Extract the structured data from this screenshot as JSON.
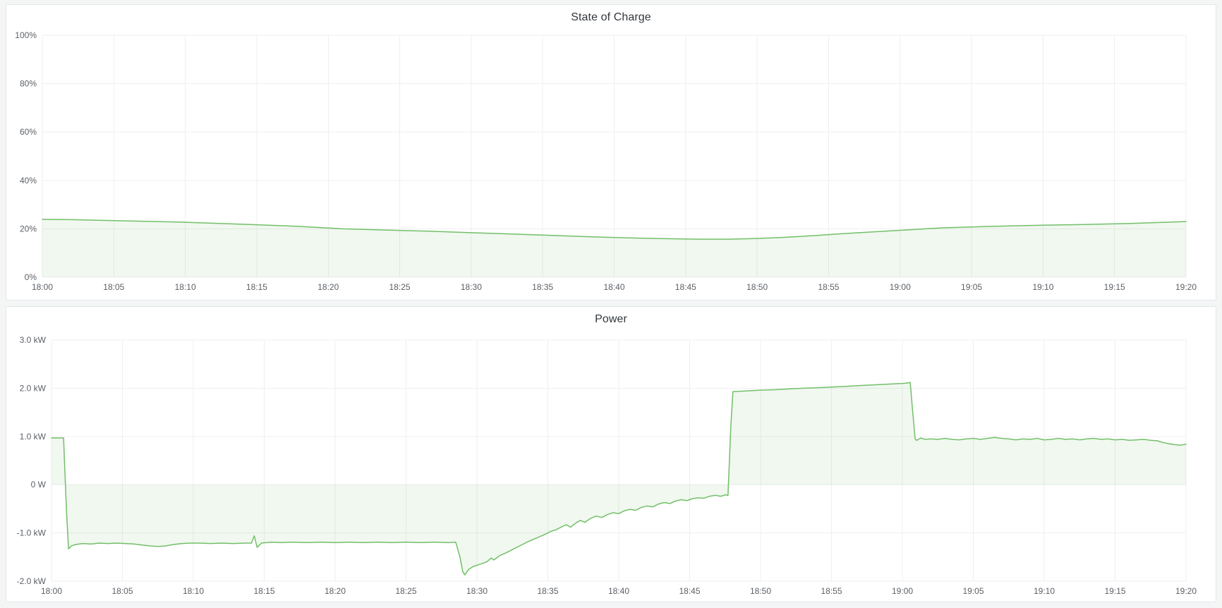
{
  "page": {
    "background": "#f4f5f5",
    "panel_background": "#ffffff",
    "panel_border_color": "#e2e7ee",
    "grid_color": "#efeff1",
    "tick_label_color": "#5c6066",
    "accent_green": "#73bf69"
  },
  "chart_data": [
    {
      "id": "soc",
      "type": "area",
      "title": "State of Charge",
      "xlabel": "",
      "ylabel": "",
      "x_unit": "time",
      "xlim_minutes": [
        0,
        80
      ],
      "ylim": [
        0,
        100
      ],
      "grid": true,
      "legend": "none",
      "x_ticks": [
        {
          "v": 0,
          "label": "18:00"
        },
        {
          "v": 5,
          "label": "18:05"
        },
        {
          "v": 10,
          "label": "18:10"
        },
        {
          "v": 15,
          "label": "18:15"
        },
        {
          "v": 20,
          "label": "18:20"
        },
        {
          "v": 25,
          "label": "18:25"
        },
        {
          "v": 30,
          "label": "18:30"
        },
        {
          "v": 35,
          "label": "18:35"
        },
        {
          "v": 40,
          "label": "18:40"
        },
        {
          "v": 45,
          "label": "18:45"
        },
        {
          "v": 50,
          "label": "18:50"
        },
        {
          "v": 55,
          "label": "18:55"
        },
        {
          "v": 60,
          "label": "19:00"
        },
        {
          "v": 65,
          "label": "19:05"
        },
        {
          "v": 70,
          "label": "19:10"
        },
        {
          "v": 75,
          "label": "19:15"
        },
        {
          "v": 80,
          "label": "19:20"
        }
      ],
      "y_ticks": [
        {
          "v": 100,
          "label": "100%"
        },
        {
          "v": 80,
          "label": "80%"
        },
        {
          "v": 60,
          "label": "60%"
        },
        {
          "v": 40,
          "label": "40%"
        },
        {
          "v": 20,
          "label": "20%"
        },
        {
          "v": 0,
          "label": "0%"
        }
      ],
      "series": [
        {
          "name": "State of Charge",
          "color": "#73bf69",
          "fill": "rgba(115,191,105,0.11)",
          "fill_baseline": 0,
          "points": [
            [
              0,
              23.9
            ],
            [
              2,
              23.8
            ],
            [
              5,
              23.4
            ],
            [
              8,
              23.0
            ],
            [
              10,
              22.7
            ],
            [
              12,
              22.3
            ],
            [
              15,
              21.7
            ],
            [
              18,
              21.0
            ],
            [
              21,
              20.0
            ],
            [
              24,
              19.5
            ],
            [
              27,
              19.0
            ],
            [
              30,
              18.4
            ],
            [
              33,
              17.8
            ],
            [
              36,
              17.2
            ],
            [
              39,
              16.6
            ],
            [
              42,
              16.1
            ],
            [
              44,
              15.9
            ],
            [
              46,
              15.7
            ],
            [
              48,
              15.7
            ],
            [
              50,
              16.0
            ],
            [
              52,
              16.5
            ],
            [
              54,
              17.2
            ],
            [
              56,
              18.0
            ],
            [
              58,
              18.7
            ],
            [
              60,
              19.4
            ],
            [
              62,
              20.1
            ],
            [
              63,
              20.4
            ],
            [
              65,
              20.8
            ],
            [
              67,
              21.1
            ],
            [
              70,
              21.5
            ],
            [
              73,
              21.8
            ],
            [
              76,
              22.2
            ],
            [
              78,
              22.6
            ],
            [
              80,
              23.0
            ]
          ]
        }
      ]
    },
    {
      "id": "power",
      "type": "area",
      "title": "Power",
      "xlabel": "",
      "ylabel": "",
      "x_unit": "time",
      "xlim_minutes": [
        0,
        80
      ],
      "ylim": [
        -2,
        3
      ],
      "grid": true,
      "legend": "none",
      "x_ticks": [
        {
          "v": 0,
          "label": "18:00"
        },
        {
          "v": 5,
          "label": "18:05"
        },
        {
          "v": 10,
          "label": "18:10"
        },
        {
          "v": 15,
          "label": "18:15"
        },
        {
          "v": 20,
          "label": "18:20"
        },
        {
          "v": 25,
          "label": "18:25"
        },
        {
          "v": 30,
          "label": "18:30"
        },
        {
          "v": 35,
          "label": "18:35"
        },
        {
          "v": 40,
          "label": "18:40"
        },
        {
          "v": 45,
          "label": "18:45"
        },
        {
          "v": 50,
          "label": "18:50"
        },
        {
          "v": 55,
          "label": "18:55"
        },
        {
          "v": 60,
          "label": "19:00"
        },
        {
          "v": 65,
          "label": "19:05"
        },
        {
          "v": 70,
          "label": "19:10"
        },
        {
          "v": 75,
          "label": "19:15"
        },
        {
          "v": 80,
          "label": "19:20"
        }
      ],
      "y_ticks": [
        {
          "v": 3,
          "label": "3.0 kW"
        },
        {
          "v": 2,
          "label": "2.0 kW"
        },
        {
          "v": 1,
          "label": "1.0 kW"
        },
        {
          "v": 0,
          "label": "0 W"
        },
        {
          "v": -1,
          "label": "-1.0 kW"
        },
        {
          "v": -2,
          "label": "-2.0 kW"
        }
      ],
      "series": [
        {
          "name": "Power",
          "color": "#73bf69",
          "fill": "rgba(115,191,105,0.11)",
          "fill_baseline": 0,
          "points": [
            [
              0,
              0.97
            ],
            [
              0.85,
              0.97
            ],
            [
              1.05,
              -0.5
            ],
            [
              1.2,
              -1.33
            ],
            [
              1.4,
              -1.27
            ],
            [
              1.7,
              -1.24
            ],
            [
              2.2,
              -1.22
            ],
            [
              2.8,
              -1.23
            ],
            [
              3.4,
              -1.21
            ],
            [
              4,
              -1.22
            ],
            [
              4.6,
              -1.21
            ],
            [
              5.2,
              -1.22
            ],
            [
              5.8,
              -1.23
            ],
            [
              6.4,
              -1.25
            ],
            [
              7,
              -1.27
            ],
            [
              7.5,
              -1.28
            ],
            [
              8,
              -1.27
            ],
            [
              8.6,
              -1.24
            ],
            [
              9.2,
              -1.22
            ],
            [
              9.8,
              -1.21
            ],
            [
              10.5,
              -1.21
            ],
            [
              11.2,
              -1.22
            ],
            [
              12,
              -1.21
            ],
            [
              12.8,
              -1.22
            ],
            [
              13.6,
              -1.21
            ],
            [
              14.1,
              -1.21
            ],
            [
              14.3,
              -1.06
            ],
            [
              14.5,
              -1.3
            ],
            [
              14.8,
              -1.21
            ],
            [
              15.5,
              -1.19
            ],
            [
              16.2,
              -1.2
            ],
            [
              17,
              -1.19
            ],
            [
              18,
              -1.2
            ],
            [
              19,
              -1.19
            ],
            [
              20,
              -1.2
            ],
            [
              21,
              -1.19
            ],
            [
              22,
              -1.2
            ],
            [
              23,
              -1.19
            ],
            [
              24,
              -1.2
            ],
            [
              25,
              -1.19
            ],
            [
              26,
              -1.2
            ],
            [
              27,
              -1.19
            ],
            [
              28,
              -1.2
            ],
            [
              28.5,
              -1.19
            ],
            [
              28.8,
              -1.5
            ],
            [
              29.0,
              -1.8
            ],
            [
              29.15,
              -1.87
            ],
            [
              29.4,
              -1.76
            ],
            [
              29.7,
              -1.7
            ],
            [
              30.2,
              -1.65
            ],
            [
              30.7,
              -1.6
            ],
            [
              31.0,
              -1.52
            ],
            [
              31.2,
              -1.56
            ],
            [
              31.6,
              -1.47
            ],
            [
              32,
              -1.42
            ],
            [
              32.4,
              -1.36
            ],
            [
              32.8,
              -1.3
            ],
            [
              33.2,
              -1.24
            ],
            [
              33.6,
              -1.18
            ],
            [
              34,
              -1.13
            ],
            [
              34.4,
              -1.08
            ],
            [
              34.8,
              -1.03
            ],
            [
              35.2,
              -0.97
            ],
            [
              35.6,
              -0.93
            ],
            [
              36,
              -0.87
            ],
            [
              36.3,
              -0.83
            ],
            [
              36.6,
              -0.88
            ],
            [
              37,
              -0.79
            ],
            [
              37.3,
              -0.74
            ],
            [
              37.6,
              -0.78
            ],
            [
              38,
              -0.7
            ],
            [
              38.4,
              -0.65
            ],
            [
              38.8,
              -0.68
            ],
            [
              39.2,
              -0.62
            ],
            [
              39.6,
              -0.58
            ],
            [
              40,
              -0.6
            ],
            [
              40.4,
              -0.54
            ],
            [
              40.8,
              -0.51
            ],
            [
              41.2,
              -0.53
            ],
            [
              41.6,
              -0.47
            ],
            [
              42,
              -0.44
            ],
            [
              42.4,
              -0.46
            ],
            [
              42.8,
              -0.4
            ],
            [
              43.2,
              -0.37
            ],
            [
              43.6,
              -0.39
            ],
            [
              44,
              -0.34
            ],
            [
              44.4,
              -0.31
            ],
            [
              44.8,
              -0.33
            ],
            [
              45.2,
              -0.29
            ],
            [
              45.6,
              -0.27
            ],
            [
              46,
              -0.28
            ],
            [
              46.4,
              -0.24
            ],
            [
              46.8,
              -0.22
            ],
            [
              47.2,
              -0.24
            ],
            [
              47.5,
              -0.21
            ],
            [
              47.7,
              -0.22
            ],
            [
              47.9,
              1.2
            ],
            [
              48.05,
              1.93
            ],
            [
              49,
              1.945
            ],
            [
              50,
              1.96
            ],
            [
              51,
              1.97
            ],
            [
              52,
              1.985
            ],
            [
              53,
              2.0
            ],
            [
              54,
              2.01
            ],
            [
              55,
              2.025
            ],
            [
              56,
              2.04
            ],
            [
              57,
              2.055
            ],
            [
              58,
              2.07
            ],
            [
              59,
              2.085
            ],
            [
              60,
              2.1
            ],
            [
              60.4,
              2.11
            ],
            [
              60.55,
              2.12
            ],
            [
              60.7,
              1.6
            ],
            [
              60.9,
              0.95
            ],
            [
              61.0,
              0.92
            ],
            [
              61.3,
              0.97
            ],
            [
              61.6,
              0.94
            ],
            [
              62,
              0.95
            ],
            [
              62.5,
              0.94
            ],
            [
              63,
              0.96
            ],
            [
              63.5,
              0.94
            ],
            [
              64,
              0.93
            ],
            [
              64.5,
              0.95
            ],
            [
              65,
              0.96
            ],
            [
              65.5,
              0.94
            ],
            [
              66,
              0.96
            ],
            [
              66.5,
              0.98
            ],
            [
              67,
              0.96
            ],
            [
              67.5,
              0.95
            ],
            [
              68,
              0.93
            ],
            [
              68.5,
              0.95
            ],
            [
              69,
              0.94
            ],
            [
              69.5,
              0.96
            ],
            [
              70,
              0.93
            ],
            [
              70.5,
              0.94
            ],
            [
              71,
              0.96
            ],
            [
              71.5,
              0.94
            ],
            [
              72,
              0.95
            ],
            [
              72.5,
              0.93
            ],
            [
              73,
              0.95
            ],
            [
              73.5,
              0.96
            ],
            [
              74,
              0.94
            ],
            [
              74.5,
              0.95
            ],
            [
              75,
              0.93
            ],
            [
              75.5,
              0.94
            ],
            [
              76,
              0.92
            ],
            [
              76.5,
              0.93
            ],
            [
              77,
              0.94
            ],
            [
              77.5,
              0.92
            ],
            [
              78,
              0.91
            ],
            [
              78.3,
              0.88
            ],
            [
              78.8,
              0.85
            ],
            [
              79.2,
              0.83
            ],
            [
              79.6,
              0.82
            ],
            [
              80,
              0.84
            ]
          ]
        }
      ]
    }
  ]
}
